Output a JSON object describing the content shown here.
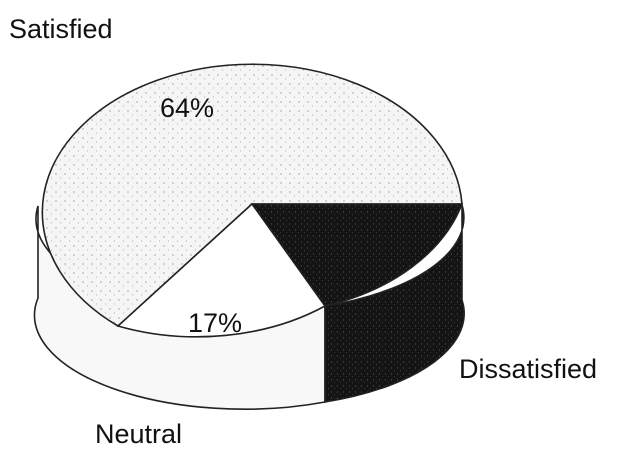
{
  "chart_data": {
    "type": "pie",
    "style": "3d",
    "title": "",
    "slices": [
      {
        "label": "Satisfied",
        "value": 64,
        "value_label": "64%",
        "color": "#f2f2f2",
        "fill": "stippled-light"
      },
      {
        "label": "Dissatisfied",
        "value": 19,
        "value_label": "",
        "color": "#1a1a1a",
        "fill": "stippled-dark"
      },
      {
        "label": "Neutral",
        "value": 17,
        "value_label": "17%",
        "color": "#ffffff",
        "fill": "white"
      }
    ]
  }
}
